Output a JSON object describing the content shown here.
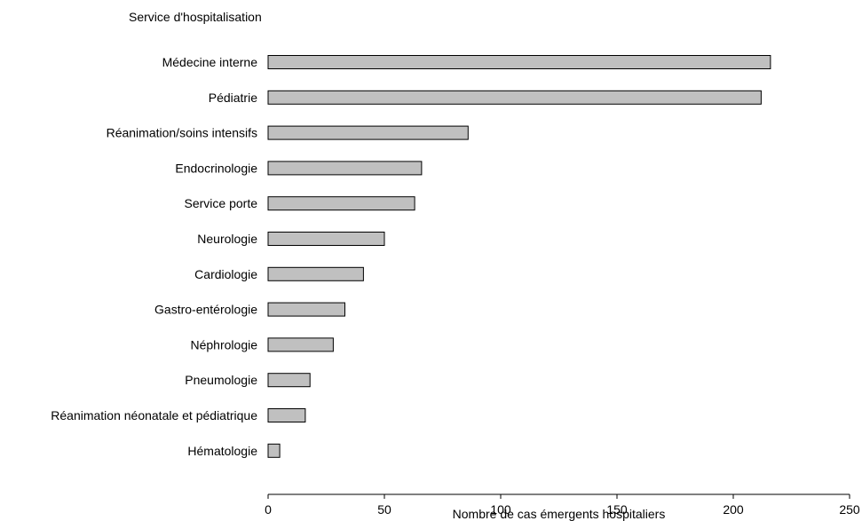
{
  "chart_data": {
    "type": "bar",
    "orientation": "horizontal",
    "title": "",
    "category_axis_label": "Service d'hospitalisation",
    "xlabel": "Nombre de cas émergents hospitaliers",
    "categories": [
      "Médecine interne",
      "Pédiatrie",
      "Réanimation/soins intensifs",
      "Endocrinologie",
      "Service porte",
      "Neurologie",
      "Cardiologie",
      "Gastro-entérologie",
      "Néphrologie",
      "Pneumologie",
      "Réanimation néonatale et pédiatrique",
      "Hématologie"
    ],
    "values": [
      216,
      212,
      86,
      66,
      63,
      50,
      41,
      33,
      28,
      18,
      16,
      5
    ],
    "xlim": [
      0,
      250
    ],
    "xticks": [
      0,
      50,
      100,
      150,
      200,
      250
    ],
    "grid": false,
    "legend": "none",
    "bar_color": "#c0c0c0",
    "bar_edge_color": "#000000"
  }
}
